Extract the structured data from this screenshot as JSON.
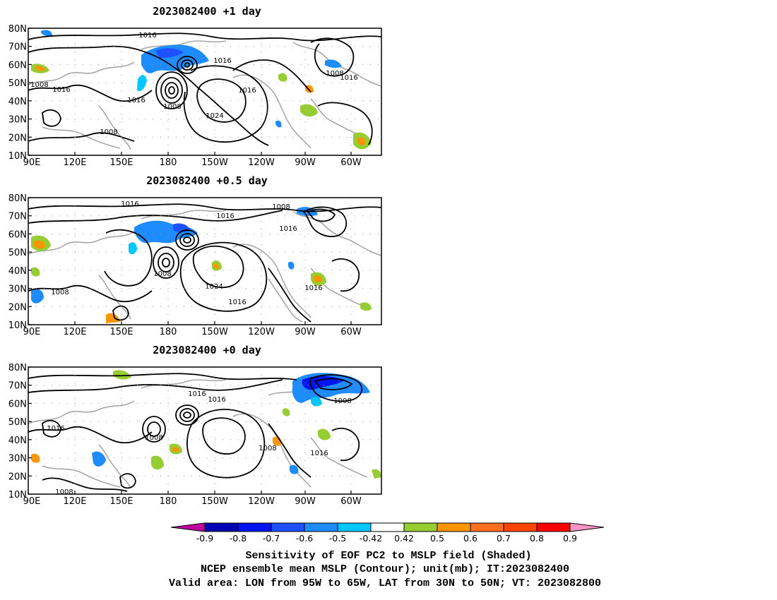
{
  "panels": [
    {
      "title": "2023082400  +1 day",
      "contour_labels": [
        "1016",
        "1016",
        "1008",
        "1016",
        "1016",
        "1008",
        "1024",
        "1016",
        "1008",
        "1008",
        "1016"
      ]
    },
    {
      "title": "2023082400  +0.5 day",
      "contour_labels": [
        "1016",
        "1016",
        "1008",
        "1016",
        "1008",
        "1024",
        "1016",
        "1008",
        "1016"
      ]
    },
    {
      "title": "2023082400  +0 day",
      "contour_labels": [
        "1016",
        "1016",
        "1016",
        "1008",
        "1008",
        "1008",
        "1016",
        "1008"
      ]
    }
  ],
  "lat_ticks": [
    "80N",
    "70N",
    "60N",
    "50N",
    "40N",
    "30N",
    "20N",
    "10N"
  ],
  "lon_ticks": [
    "90E",
    "120E",
    "150E",
    "180",
    "150W",
    "120W",
    "90W",
    "60W"
  ],
  "colorbar": {
    "labels": [
      "-0.9",
      "-0.8",
      "-0.7",
      "-0.6",
      "-0.5",
      "-0.42",
      "0.42",
      "0.5",
      "0.6",
      "0.7",
      "0.8",
      "0.9"
    ],
    "colors": [
      "#c000a0",
      "#0000b4",
      "#0014f0",
      "#1e50ff",
      "#1e8cff",
      "#00c8ff",
      "#ffffff",
      "#96cd32",
      "#ff9600",
      "#ff6e1e",
      "#ff4600",
      "#ff0000",
      "#ff96c8"
    ]
  },
  "caption": {
    "line1": "Sensitivity of EOF PC2 to MSLP field (Shaded)",
    "line2": "NCEP ensemble mean MSLP (Contour); unit(mb); IT:2023082400",
    "line3": "Valid area: LON from 95W to 65W, LAT from 30N to 50N; VT: 2023082800"
  }
}
